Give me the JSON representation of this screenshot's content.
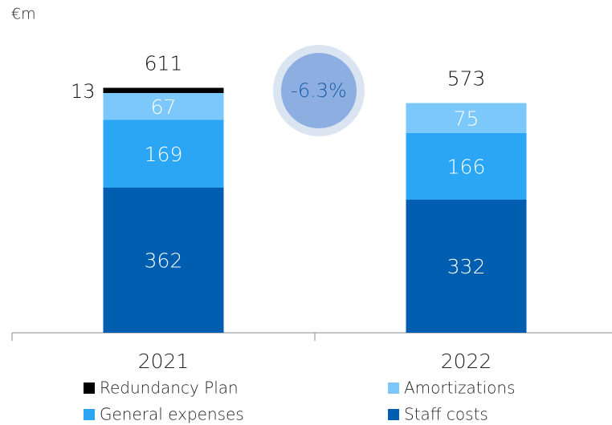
{
  "chart_data": {
    "type": "stacked_bar",
    "unit_label": "€m",
    "categories": [
      "2021",
      "2022"
    ],
    "series": [
      {
        "name": "Staff costs",
        "color": "#005eb0",
        "values": [
          362,
          332
        ]
      },
      {
        "name": "General expenses",
        "color": "#2ba6f5",
        "values": [
          169,
          166
        ]
      },
      {
        "name": "Amortizations",
        "color": "#7cc8fb",
        "values": [
          67,
          75
        ]
      },
      {
        "name": "Redundancy Plan",
        "color": "#000000",
        "values": [
          13,
          null
        ]
      }
    ],
    "totals": [
      611,
      573
    ],
    "annotation": "-6.3%",
    "ylim": [
      0,
      800
    ]
  }
}
